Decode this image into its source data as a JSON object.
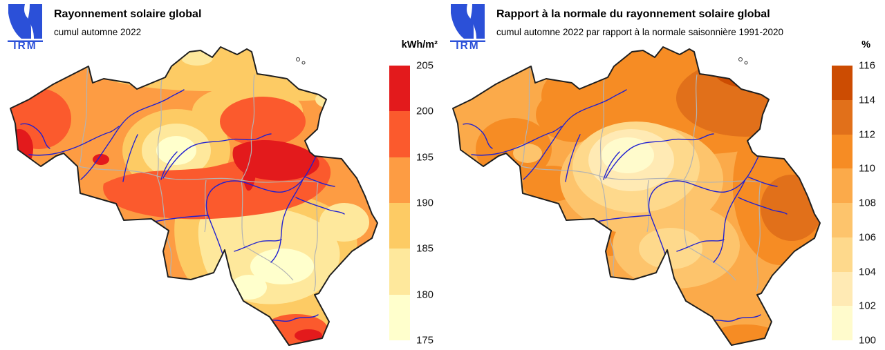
{
  "left_panel": {
    "title": "Rayonnement solaire global",
    "subtitle": "cumul automne 2022",
    "legend_unit": "kWh/m²",
    "legend_labels": [
      "205",
      "200",
      "195",
      "190",
      "185",
      "180",
      "175"
    ],
    "legend_colors": [
      "#e31a1c",
      "#fb5a2d",
      "#fd9c43",
      "#fdcb64",
      "#fee89c",
      "#ffffcc"
    ]
  },
  "right_panel": {
    "title": "Rapport à la normale du rayonnement solaire global",
    "subtitle": "cumul automne 2022 par rapport à la normale saisonnière 1991-2020",
    "legend_unit": "%",
    "legend_labels": [
      "116",
      "114",
      "112",
      "110",
      "108",
      "106",
      "104",
      "102",
      "100"
    ],
    "legend_colors": [
      "#cc4c02",
      "#e1701a",
      "#f68c24",
      "#fbaa4a",
      "#fdc46c",
      "#fed98c",
      "#ffeab4",
      "#fffbcc"
    ]
  },
  "logo": {
    "text": "IRM",
    "color": "#2b50d8"
  },
  "map_colors": {
    "outline": "#1f1f1f",
    "rivers": "#2020d0",
    "provinces": "#b3b3b3",
    "sea_background": "#ffffff"
  }
}
